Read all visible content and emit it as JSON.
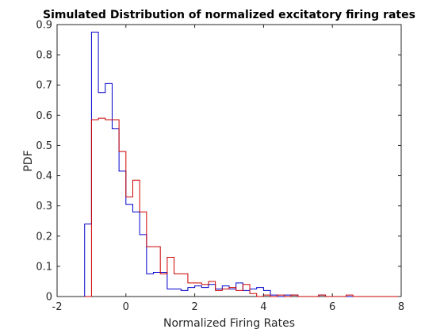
{
  "chart_data": {
    "type": "histogram-step",
    "title": "Simulated Distribution of normalized excitatory firing rates",
    "xlabel": "Normalized Firing Rates",
    "ylabel": "PDF",
    "xlim": [
      -2,
      8
    ],
    "ylim": [
      0,
      0.9
    ],
    "x_ticks": [
      -2,
      0,
      2,
      4,
      6,
      8
    ],
    "y_ticks": [
      0,
      0.1,
      0.2,
      0.3,
      0.4,
      0.5,
      0.6,
      0.7,
      0.8,
      0.9
    ],
    "grid": false,
    "box": true,
    "series": [
      {
        "color": "#0000cc",
        "bins": [
          [
            -1.2,
            -1.0,
            0.24
          ],
          [
            -1.0,
            -0.8,
            0.875
          ],
          [
            -0.8,
            -0.6,
            0.675
          ],
          [
            -0.6,
            -0.4,
            0.705
          ],
          [
            -0.4,
            -0.2,
            0.555
          ],
          [
            -0.2,
            0.0,
            0.415
          ],
          [
            0.0,
            0.2,
            0.305
          ],
          [
            0.2,
            0.4,
            0.28
          ],
          [
            0.4,
            0.6,
            0.205
          ],
          [
            0.6,
            0.8,
            0.075
          ],
          [
            0.8,
            1.0,
            0.08
          ],
          [
            1.0,
            1.2,
            0.08
          ],
          [
            1.2,
            1.4,
            0.025
          ],
          [
            1.4,
            1.6,
            0.025
          ],
          [
            1.6,
            1.8,
            0.02
          ],
          [
            1.8,
            2.0,
            0.03
          ],
          [
            2.0,
            2.2,
            0.035
          ],
          [
            2.2,
            2.4,
            0.03
          ],
          [
            2.4,
            2.6,
            0.04
          ],
          [
            2.6,
            2.8,
            0.025
          ],
          [
            2.8,
            3.0,
            0.035
          ],
          [
            3.0,
            3.2,
            0.025
          ],
          [
            3.2,
            3.4,
            0.045
          ],
          [
            3.4,
            3.6,
            0.02
          ],
          [
            3.6,
            3.8,
            0.025
          ],
          [
            3.8,
            4.0,
            0.03
          ],
          [
            4.0,
            4.2,
            0.02
          ],
          [
            4.2,
            4.4,
            0.005
          ],
          [
            4.4,
            4.6,
            0.0
          ],
          [
            4.6,
            4.8,
            0.005
          ],
          [
            4.8,
            5.0,
            0.005
          ],
          [
            5.0,
            5.6,
            0.0
          ],
          [
            5.6,
            5.8,
            0.005
          ],
          [
            5.8,
            8.0,
            0.0
          ]
        ]
      },
      {
        "color": "#cc0000",
        "bins": [
          [
            -1.2,
            -1.0,
            0.0
          ],
          [
            -1.0,
            -0.8,
            0.585
          ],
          [
            -0.8,
            -0.6,
            0.59
          ],
          [
            -0.6,
            -0.4,
            0.585
          ],
          [
            -0.4,
            -0.2,
            0.585
          ],
          [
            -0.2,
            0.0,
            0.48
          ],
          [
            0.0,
            0.2,
            0.33
          ],
          [
            0.2,
            0.4,
            0.385
          ],
          [
            0.4,
            0.6,
            0.28
          ],
          [
            0.6,
            0.8,
            0.165
          ],
          [
            0.8,
            1.0,
            0.165
          ],
          [
            1.0,
            1.2,
            0.075
          ],
          [
            1.2,
            1.4,
            0.13
          ],
          [
            1.4,
            1.6,
            0.075
          ],
          [
            1.6,
            1.8,
            0.075
          ],
          [
            1.8,
            2.0,
            0.045
          ],
          [
            2.0,
            2.2,
            0.045
          ],
          [
            2.2,
            2.4,
            0.04
          ],
          [
            2.4,
            2.6,
            0.05
          ],
          [
            2.6,
            2.8,
            0.02
          ],
          [
            2.8,
            3.0,
            0.025
          ],
          [
            3.0,
            3.2,
            0.03
          ],
          [
            3.2,
            3.4,
            0.02
          ],
          [
            3.4,
            3.6,
            0.04
          ],
          [
            3.6,
            3.8,
            0.01
          ],
          [
            3.8,
            4.0,
            0.0
          ],
          [
            4.0,
            4.2,
            0.005
          ],
          [
            4.2,
            4.4,
            0.0
          ],
          [
            4.4,
            4.6,
            0.005
          ],
          [
            4.6,
            4.8,
            0.0
          ],
          [
            4.8,
            5.0,
            0.005
          ],
          [
            5.0,
            5.6,
            0.0
          ],
          [
            5.6,
            5.8,
            0.005
          ],
          [
            5.8,
            6.4,
            0.0
          ],
          [
            6.4,
            6.6,
            0.005
          ],
          [
            6.6,
            8.0,
            0.0
          ]
        ]
      }
    ]
  }
}
